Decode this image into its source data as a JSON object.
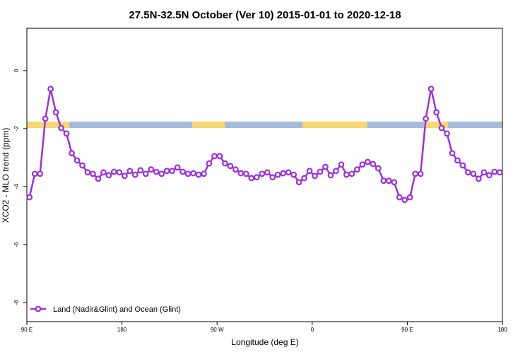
{
  "chart_data": {
    "type": "line",
    "title": "27.5N-32.5N October (Ver 10)   2015-01-01 to 2020-12-18",
    "x_label": "Longitude (deg E)",
    "y_label": "XCO2 - MLO trend (ppm)",
    "x": [
      92.5,
      97.5,
      102.5,
      107.5,
      112.5,
      117.5,
      122.5,
      127.5,
      132.5,
      137.5,
      142.5,
      147.5,
      152.5,
      157.5,
      162.5,
      167.5,
      172.5,
      177.5,
      182.5,
      187.5,
      192.5,
      197.5,
      202.5,
      207.5,
      212.5,
      217.5,
      222.5,
      227.5,
      232.5,
      237.5,
      242.5,
      247.5,
      252.5,
      257.5,
      262.5,
      267.5,
      272.5,
      277.5,
      282.5,
      287.5,
      292.5,
      297.5,
      302.5,
      307.5,
      312.5,
      317.5,
      322.5,
      327.5,
      332.5,
      337.5,
      342.5,
      347.5,
      352.5,
      357.5,
      362.5,
      367.5,
      372.5,
      377.5,
      382.5,
      387.5,
      392.5,
      397.5,
      402.5,
      407.5,
      412.5,
      417.5,
      422.5,
      427.5,
      432.5,
      437.5,
      442.5,
      447.5,
      452.5,
      457.5,
      462.5,
      467.5,
      472.5,
      477.5,
      482.5,
      487.5,
      492.5,
      497.5,
      502.5,
      507.5,
      512.5,
      517.5,
      522.5,
      527.5,
      532.5,
      537.5
    ],
    "series": [
      {
        "name": "Land (Nadir&Glint) and Ocean (Glint)",
        "color": "#9b30e0",
        "values": [
          -4.37,
          -3.56,
          -3.56,
          -1.66,
          -0.63,
          -1.44,
          -1.98,
          -2.17,
          -2.85,
          -3.1,
          -3.27,
          -3.51,
          -3.56,
          -3.73,
          -3.51,
          -3.61,
          -3.49,
          -3.51,
          -3.63,
          -3.46,
          -3.59,
          -3.44,
          -3.56,
          -3.41,
          -3.49,
          -3.56,
          -3.46,
          -3.46,
          -3.34,
          -3.49,
          -3.56,
          -3.54,
          -3.59,
          -3.56,
          -3.2,
          -2.95,
          -2.95,
          -3.2,
          -3.29,
          -3.41,
          -3.54,
          -3.56,
          -3.71,
          -3.68,
          -3.56,
          -3.51,
          -3.68,
          -3.59,
          -3.54,
          -3.51,
          -3.59,
          -3.85,
          -3.71,
          -3.46,
          -3.63,
          -3.49,
          -3.32,
          -3.61,
          -3.46,
          -3.24,
          -3.59,
          -3.56,
          -3.41,
          -3.24,
          -3.15,
          -3.22,
          -3.37,
          -3.8,
          -3.8,
          -3.85,
          -4.37,
          -4.46,
          -4.37,
          -3.56,
          -3.56,
          -1.66,
          -0.63,
          -1.44,
          -1.98,
          -2.17,
          -2.85,
          -3.1,
          -3.27,
          -3.51,
          -3.56,
          -3.73,
          -3.51,
          -3.61,
          -3.49,
          -3.51
        ]
      }
    ],
    "xlim": [
      90,
      540
    ],
    "xticks": [
      {
        "value": 90,
        "label": "90 E"
      },
      180,
      {
        "value": 270,
        "label": "90 W"
      },
      {
        "value": 360,
        "label": "0"
      },
      {
        "value": 450,
        "label": "90 E"
      },
      {
        "value": 540,
        "label": "180"
      }
    ],
    "ylim": [
      -8.66,
      1.46
    ],
    "yticks": [
      0,
      -2,
      -4,
      -6,
      -8
    ],
    "legend": "bottom-left"
  }
}
